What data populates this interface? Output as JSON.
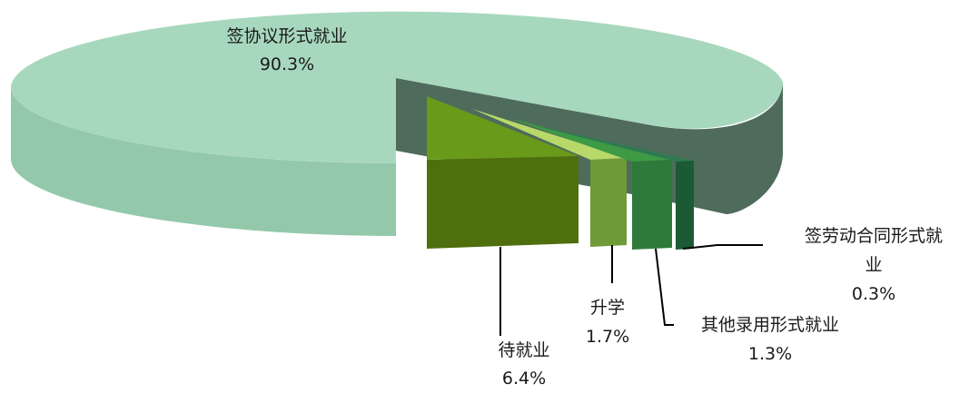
{
  "chart_data": {
    "type": "pie",
    "style": "3d-exploded",
    "title": "",
    "slices": [
      {
        "label": "签协议形式就业",
        "label_lines": [
          "签协议形式就业"
        ],
        "value": 90.3,
        "value_text": "90.3%",
        "color": "#a7d8bd"
      },
      {
        "label": "待就业",
        "label_lines": [
          "待就业"
        ],
        "value": 6.4,
        "value_text": "6.4%",
        "color": "#6a9a1a"
      },
      {
        "label": "升学",
        "label_lines": [
          "升学"
        ],
        "value": 1.7,
        "value_text": "1.7%",
        "color": "#b8d96a"
      },
      {
        "label": "其他录用形式就业",
        "label_lines": [
          "其他录用形式就业"
        ],
        "value": 1.3,
        "value_text": "1.3%",
        "color": "#3e9a45"
      },
      {
        "label": "签劳动合同形式就业",
        "label_lines": [
          "签劳动合同形式就业"
        ],
        "value": 0.3,
        "value_text": "0.3%",
        "color": "#1c5a36"
      }
    ]
  }
}
